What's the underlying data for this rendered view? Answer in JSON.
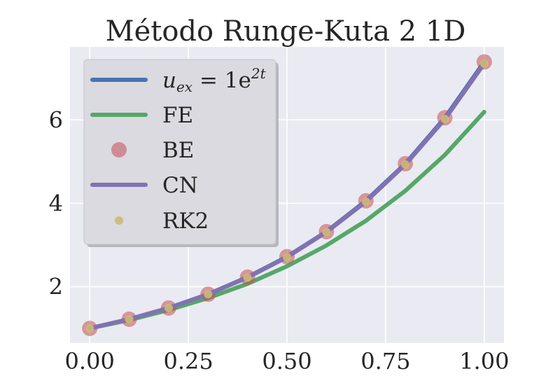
{
  "chart_data": {
    "type": "line",
    "title": "Método Runge-Kuta 2 1D",
    "xlabel": "",
    "ylabel": "",
    "xlim": [
      -0.05,
      1.05
    ],
    "ylim": [
      0.65,
      7.75
    ],
    "xticks": [
      0.0,
      0.25,
      0.5,
      0.75,
      1.0
    ],
    "xtick_labels": [
      "0.00",
      "0.25",
      "0.50",
      "0.75",
      "1.00"
    ],
    "yticks": [
      2,
      4,
      6
    ],
    "ytick_labels": [
      "2",
      "4",
      "6"
    ],
    "grid": true,
    "legend_position": "upper-left",
    "x": [
      0.0,
      0.1,
      0.2,
      0.3,
      0.4,
      0.5,
      0.6,
      0.7,
      0.8,
      0.9,
      1.0
    ],
    "series": [
      {
        "id": "uex",
        "style": "line",
        "color": "#4c72b0",
        "legend": {
          "main": "u",
          "sub": "ex",
          "mid": " = 1e",
          "sup": "2t"
        },
        "values": [
          1.0,
          1.22,
          1.49,
          1.82,
          2.23,
          2.72,
          3.32,
          4.06,
          4.95,
          6.05,
          7.39
        ]
      },
      {
        "id": "fe",
        "name": "FE",
        "style": "line",
        "color": "#55a868",
        "values": [
          1.0,
          1.2,
          1.44,
          1.73,
          2.07,
          2.49,
          2.99,
          3.58,
          4.3,
          5.16,
          6.19
        ]
      },
      {
        "id": "be",
        "name": "BE",
        "style": "marker-large",
        "color": "#c44e52",
        "values": [
          1.0,
          1.22,
          1.49,
          1.82,
          2.23,
          2.72,
          3.32,
          4.06,
          4.95,
          6.05,
          7.39
        ]
      },
      {
        "id": "cn",
        "name": "CN",
        "style": "line",
        "color": "#8172b2",
        "values": [
          1.0,
          1.22,
          1.49,
          1.82,
          2.22,
          2.71,
          3.31,
          4.04,
          4.93,
          6.02,
          7.35
        ]
      },
      {
        "id": "rk2",
        "name": "RK2",
        "style": "marker-small",
        "color": "#ccb974",
        "values": [
          1.0,
          1.22,
          1.49,
          1.82,
          2.22,
          2.71,
          3.31,
          4.04,
          4.93,
          6.02,
          7.35
        ]
      }
    ]
  }
}
